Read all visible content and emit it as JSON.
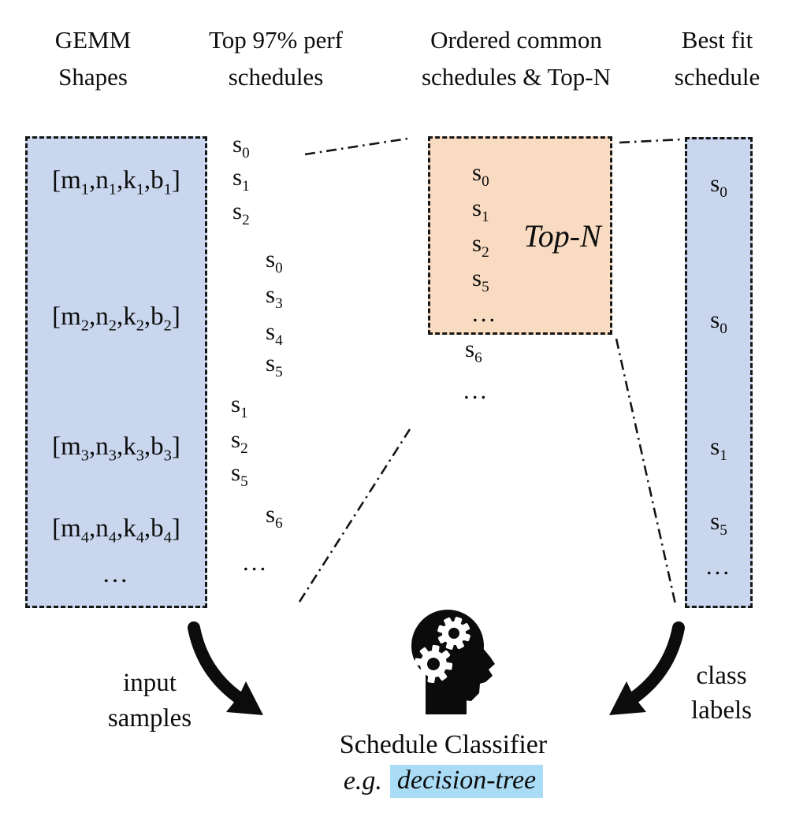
{
  "colors": {
    "shape_box_fill": "#c9d6ee",
    "topn_box_fill": "#f9dbc2",
    "term_highlight": "#abdcf5",
    "ink": "#0d0d0d"
  },
  "headers": [
    {
      "line1": "GEMM",
      "line2": "Shapes"
    },
    {
      "line1": "Top 97% perf",
      "line2": "schedules"
    },
    {
      "line1": "Ordered common",
      "line2": "schedules & Top-N"
    },
    {
      "line1": "Best fit",
      "line2": "schedule"
    }
  ],
  "shapes_box": {
    "items": [
      "[m1,n1,k1,b1]",
      "[m2,n2,k2,b2]",
      "[m3,n3,k3,b3]",
      "[m4,n4,k4,b4]",
      "..."
    ]
  },
  "schedules_col": {
    "items": [
      {
        "label": "s0"
      },
      {
        "label": "s1"
      },
      {
        "label": "s2"
      },
      {
        "label": "s0"
      },
      {
        "label": "s3"
      },
      {
        "label": "s4"
      },
      {
        "label": "s5"
      },
      {
        "label": "s1"
      },
      {
        "label": "s2"
      },
      {
        "label": "s5"
      },
      {
        "label": "s6"
      },
      {
        "label": "..."
      }
    ]
  },
  "topn_box": {
    "label": "Top-N",
    "items": [
      "s0",
      "s1",
      "s2",
      "s5",
      "..."
    ],
    "overflow_items": [
      "s6",
      "..."
    ]
  },
  "bestfit_box": {
    "items": [
      "s0",
      "s0",
      "s1",
      "s5",
      "..."
    ]
  },
  "classifier": {
    "title": "Schedule Classifier",
    "example_prefix": "e.g.",
    "example_term": "decision-tree"
  },
  "flow_labels": {
    "input_line1": "input",
    "input_line2": "samples",
    "output_line1": "class",
    "output_line2": "labels"
  }
}
